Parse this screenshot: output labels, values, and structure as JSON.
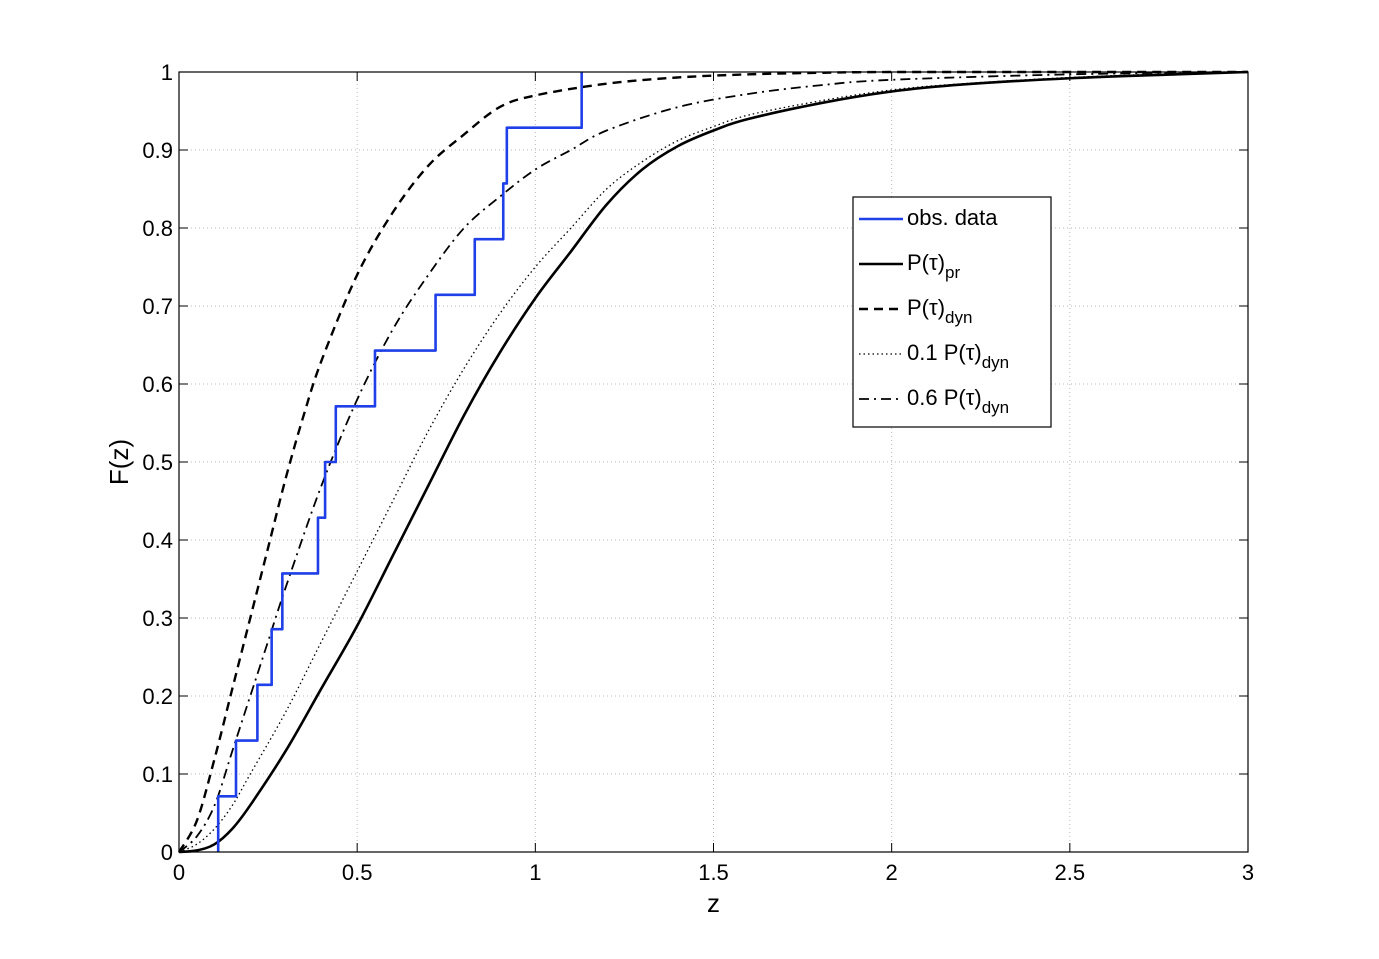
{
  "chart_data": {
    "type": "line",
    "title": "",
    "xlabel": "z",
    "ylabel": "F(z)",
    "xlim": [
      0,
      3
    ],
    "ylim": [
      0,
      1
    ],
    "xticks": [
      "0",
      "0.5",
      "1",
      "1.5",
      "2",
      "2.5",
      "3"
    ],
    "yticks": [
      "0",
      "0.1",
      "0.2",
      "0.3",
      "0.4",
      "0.5",
      "0.6",
      "0.7",
      "0.8",
      "0.9",
      "1"
    ],
    "grid": true,
    "legend_position": "upper-right (inside axes)",
    "series": [
      {
        "name": "obs. data",
        "legend_main": "obs. data",
        "legend_sub": "",
        "style": "step",
        "color": "#1f3fe8",
        "x": [
          0.11,
          0.16,
          0.22,
          0.26,
          0.29,
          0.39,
          0.41,
          0.44,
          0.55,
          0.72,
          0.83,
          0.91,
          0.92,
          1.13
        ],
        "y": [
          0.0714,
          0.1429,
          0.2143,
          0.2857,
          0.3571,
          0.4286,
          0.5,
          0.5714,
          0.6429,
          0.7143,
          0.7857,
          0.8571,
          0.9286,
          1.0
        ]
      },
      {
        "name": "P(τ)pr",
        "legend_main": "P(τ)",
        "legend_sub": "pr",
        "style": "solid",
        "color": "#000000",
        "x": [
          0,
          0.05,
          0.1,
          0.15,
          0.2,
          0.3,
          0.4,
          0.5,
          0.6,
          0.7,
          0.8,
          0.9,
          1.0,
          1.1,
          1.2,
          1.3,
          1.4,
          1.5,
          1.6,
          1.8,
          2.0,
          2.2,
          2.5,
          2.8,
          3.0
        ],
        "y": [
          0,
          0.002,
          0.01,
          0.03,
          0.06,
          0.13,
          0.21,
          0.29,
          0.38,
          0.47,
          0.56,
          0.64,
          0.71,
          0.77,
          0.83,
          0.875,
          0.905,
          0.925,
          0.94,
          0.96,
          0.975,
          0.984,
          0.992,
          0.997,
          1.0
        ]
      },
      {
        "name": "P(τ)dyn",
        "legend_main": "P(τ)",
        "legend_sub": "dyn",
        "style": "dashed",
        "color": "#000000",
        "x": [
          0,
          0.05,
          0.1,
          0.15,
          0.2,
          0.25,
          0.3,
          0.35,
          0.4,
          0.5,
          0.6,
          0.7,
          0.8,
          0.9,
          1.0,
          1.2,
          1.4,
          1.6,
          1.8,
          2.0,
          2.5,
          3.0
        ],
        "y": [
          0,
          0.04,
          0.12,
          0.21,
          0.3,
          0.39,
          0.48,
          0.56,
          0.63,
          0.74,
          0.82,
          0.88,
          0.92,
          0.955,
          0.97,
          0.985,
          0.993,
          0.997,
          0.999,
          1.0,
          1.0,
          1.0
        ]
      },
      {
        "name": "0.1 P(τ)dyn",
        "legend_main": "0.1 P(τ)",
        "legend_sub": "dyn",
        "style": "dotted",
        "color": "#000000",
        "x": [
          0,
          0.05,
          0.1,
          0.15,
          0.2,
          0.3,
          0.4,
          0.5,
          0.6,
          0.7,
          0.8,
          0.9,
          1.0,
          1.1,
          1.2,
          1.3,
          1.4,
          1.5,
          1.6,
          1.8,
          2.0,
          2.2,
          2.5,
          2.8,
          3.0
        ],
        "y": [
          0,
          0.01,
          0.03,
          0.06,
          0.1,
          0.18,
          0.27,
          0.36,
          0.45,
          0.54,
          0.62,
          0.69,
          0.75,
          0.8,
          0.85,
          0.885,
          0.912,
          0.93,
          0.945,
          0.963,
          0.977,
          0.985,
          0.993,
          0.998,
          1.0
        ]
      },
      {
        "name": "0.6 P(τ)dyn",
        "legend_main": "0.6 P(τ)",
        "legend_sub": "dyn",
        "style": "dashdot",
        "color": "#000000",
        "x": [
          0,
          0.05,
          0.1,
          0.15,
          0.2,
          0.25,
          0.3,
          0.4,
          0.5,
          0.6,
          0.7,
          0.8,
          0.9,
          1.0,
          1.1,
          1.2,
          1.4,
          1.6,
          1.8,
          2.0,
          2.5,
          3.0
        ],
        "y": [
          0,
          0.02,
          0.06,
          0.13,
          0.2,
          0.27,
          0.34,
          0.47,
          0.58,
          0.67,
          0.74,
          0.8,
          0.84,
          0.875,
          0.9,
          0.925,
          0.955,
          0.972,
          0.983,
          0.99,
          0.997,
          1.0
        ]
      }
    ]
  }
}
